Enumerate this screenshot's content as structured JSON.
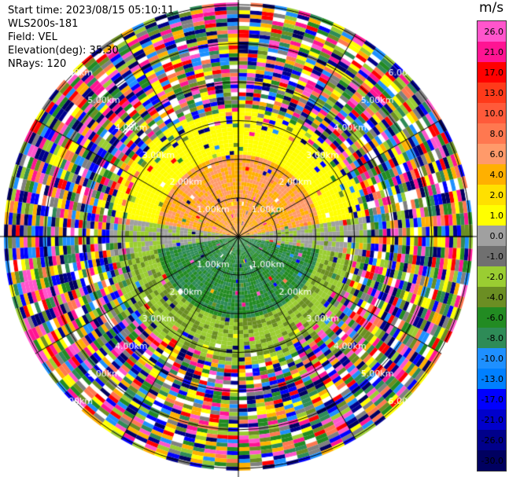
{
  "header": {
    "start_time": "Start time: 2023/08/15 05:10:11",
    "instrument": "WLS200s-181",
    "field": "Field: VEL",
    "elevation": "Elevation(deg): 35.30",
    "nrays": "NRays: 120"
  },
  "range_rings": {
    "labels": [
      "1.00km",
      "2.00km",
      "3.00km",
      "4.00km",
      "5.00km",
      "6.00km"
    ]
  },
  "colorbar": {
    "unit": "m/s",
    "ticks": [
      "26.0",
      "21.0",
      "17.0",
      "13.0",
      "10.0",
      "8.0",
      "6.0",
      "4.0",
      "2.0",
      "1.0",
      "0.0",
      "-1.0",
      "-2.0",
      "-4.0",
      "-6.0",
      "-8.0",
      "-10.0",
      "-13.0",
      "-17.0",
      "-21.0",
      "-26.0",
      "-30.0"
    ],
    "colors": [
      "#ff55cc",
      "#ff1493",
      "#ff0000",
      "#ff3a1a",
      "#ff5a3a",
      "#ff7850",
      "#ff9a6a",
      "#ffb000",
      "#ffe000",
      "#ffff00",
      "#a0a0a0",
      "#707070",
      "#9acd32",
      "#6b8e23",
      "#228b22",
      "#2e8b57",
      "#1e90ff",
      "#0080ff",
      "#0000ff",
      "#0000cc",
      "#00008b",
      "#000060"
    ]
  }
}
